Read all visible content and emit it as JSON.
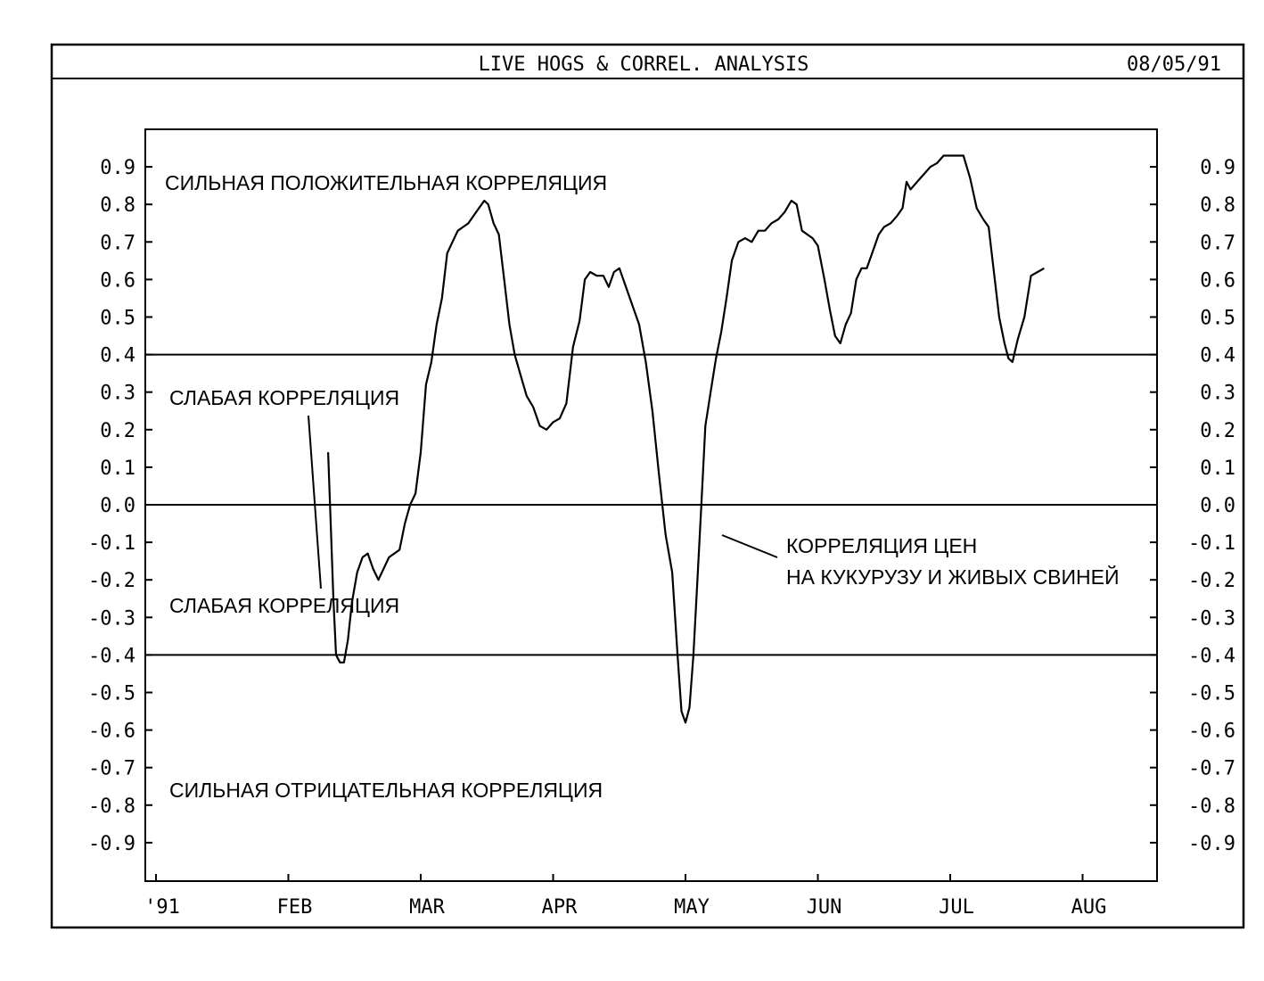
{
  "header": {
    "title": "LIVE HOGS & CORREL. ANALYSIS",
    "date": "08/05/91"
  },
  "chart_data": {
    "type": "line",
    "title": "LIVE HOGS & CORREL. ANALYSIS",
    "xlabel": "",
    "ylabel": "",
    "ylim": [
      -1.0,
      1.0
    ],
    "xlim": [
      0,
      8.5
    ],
    "grid": false,
    "y_ticks": [
      "0.9",
      "0.8",
      "0.7",
      "0.6",
      "0.5",
      "0.4",
      "0.3",
      "0.2",
      "0.1",
      "0.0",
      "-0.1",
      "-0.2",
      "-0.3",
      "-0.4",
      "-0.5",
      "-0.6",
      "-0.7",
      "-0.8",
      "-0.9"
    ],
    "y_tick_values": [
      0.9,
      0.8,
      0.7,
      0.6,
      0.5,
      0.4,
      0.3,
      0.2,
      0.1,
      0.0,
      -0.1,
      -0.2,
      -0.3,
      -0.4,
      -0.5,
      -0.6,
      -0.7,
      -0.8,
      -0.9
    ],
    "x_ticks": [
      "'91",
      "FEB",
      "MAR",
      "APR",
      "MAY",
      "JUN",
      "JUL",
      "AUG"
    ],
    "x_tick_values": [
      0,
      1,
      2,
      3,
      4,
      5,
      6,
      7
    ],
    "reference_lines": [
      0.4,
      0.0,
      -0.4
    ],
    "annotations": {
      "strong_positive": "СИЛЬНАЯ ПОЛОЖИТЕЛЬНАЯ КОРРЕЛЯЦИЯ",
      "weak_upper": "СЛАБАЯ КОРРЕЛЯЦИЯ",
      "weak_lower": "СЛАБАЯ КОРРЕЛЯЦИЯ",
      "strong_negative": "СИЛЬНАЯ ОТРИЦАТЕЛЬНАЯ КОРРЕЛЯЦИЯ",
      "series_label_line1": "КОРРЕЛЯЦИЯ ЦЕН",
      "series_label_line2": "НА КУКУРУЗУ И ЖИВЫХ СВИНЕЙ"
    },
    "series": [
      {
        "points": [
          [
            1.3,
            0.14
          ],
          [
            1.32,
            -0.05
          ],
          [
            1.34,
            -0.25
          ],
          [
            1.36,
            -0.4
          ],
          [
            1.39,
            -0.42
          ],
          [
            1.42,
            -0.42
          ],
          [
            1.45,
            -0.36
          ],
          [
            1.48,
            -0.26
          ],
          [
            1.52,
            -0.18
          ],
          [
            1.56,
            -0.14
          ],
          [
            1.6,
            -0.13
          ],
          [
            1.64,
            -0.17
          ],
          [
            1.68,
            -0.2
          ],
          [
            1.72,
            -0.17
          ],
          [
            1.76,
            -0.14
          ],
          [
            1.8,
            -0.13
          ],
          [
            1.84,
            -0.12
          ],
          [
            1.88,
            -0.05
          ],
          [
            1.92,
            0.0
          ],
          [
            1.96,
            0.03
          ],
          [
            2.0,
            0.14
          ],
          [
            2.04,
            0.32
          ],
          [
            2.08,
            0.38
          ],
          [
            2.12,
            0.48
          ],
          [
            2.16,
            0.55
          ],
          [
            2.2,
            0.67
          ],
          [
            2.24,
            0.7
          ],
          [
            2.28,
            0.73
          ],
          [
            2.32,
            0.74
          ],
          [
            2.36,
            0.75
          ],
          [
            2.4,
            0.77
          ],
          [
            2.44,
            0.79
          ],
          [
            2.48,
            0.81
          ],
          [
            2.51,
            0.8
          ],
          [
            2.55,
            0.75
          ],
          [
            2.59,
            0.72
          ],
          [
            2.63,
            0.6
          ],
          [
            2.67,
            0.48
          ],
          [
            2.71,
            0.4
          ],
          [
            2.75,
            0.35
          ],
          [
            2.8,
            0.29
          ],
          [
            2.85,
            0.26
          ],
          [
            2.9,
            0.21
          ],
          [
            2.95,
            0.2
          ],
          [
            3.0,
            0.22
          ],
          [
            3.05,
            0.23
          ],
          [
            3.1,
            0.27
          ],
          [
            3.15,
            0.42
          ],
          [
            3.2,
            0.49
          ],
          [
            3.24,
            0.6
          ],
          [
            3.28,
            0.62
          ],
          [
            3.33,
            0.61
          ],
          [
            3.38,
            0.61
          ],
          [
            3.42,
            0.58
          ],
          [
            3.46,
            0.62
          ],
          [
            3.5,
            0.63
          ],
          [
            3.55,
            0.58
          ],
          [
            3.6,
            0.53
          ],
          [
            3.65,
            0.48
          ],
          [
            3.7,
            0.38
          ],
          [
            3.75,
            0.25
          ],
          [
            3.8,
            0.08
          ],
          [
            3.85,
            -0.08
          ],
          [
            3.9,
            -0.18
          ],
          [
            3.94,
            -0.4
          ],
          [
            3.97,
            -0.55
          ],
          [
            4.0,
            -0.58
          ],
          [
            4.03,
            -0.54
          ],
          [
            4.06,
            -0.4
          ],
          [
            4.09,
            -0.2
          ],
          [
            4.12,
            0.0
          ],
          [
            4.15,
            0.21
          ],
          [
            4.19,
            0.3
          ],
          [
            4.23,
            0.39
          ],
          [
            4.27,
            0.46
          ],
          [
            4.31,
            0.55
          ],
          [
            4.35,
            0.65
          ],
          [
            4.4,
            0.7
          ],
          [
            4.45,
            0.71
          ],
          [
            4.5,
            0.7
          ],
          [
            4.55,
            0.73
          ],
          [
            4.6,
            0.73
          ],
          [
            4.65,
            0.75
          ],
          [
            4.7,
            0.76
          ],
          [
            4.75,
            0.78
          ],
          [
            4.8,
            0.81
          ],
          [
            4.84,
            0.8
          ],
          [
            4.88,
            0.73
          ],
          [
            4.92,
            0.72
          ],
          [
            4.96,
            0.71
          ],
          [
            5.0,
            0.69
          ],
          [
            5.05,
            0.6
          ],
          [
            5.09,
            0.52
          ],
          [
            5.13,
            0.45
          ],
          [
            5.17,
            0.43
          ],
          [
            5.21,
            0.48
          ],
          [
            5.25,
            0.51
          ],
          [
            5.29,
            0.6
          ],
          [
            5.33,
            0.63
          ],
          [
            5.37,
            0.63
          ],
          [
            5.41,
            0.67
          ],
          [
            5.46,
            0.72
          ],
          [
            5.5,
            0.74
          ],
          [
            5.55,
            0.75
          ],
          [
            5.6,
            0.77
          ],
          [
            5.64,
            0.79
          ],
          [
            5.67,
            0.86
          ],
          [
            5.7,
            0.84
          ],
          [
            5.75,
            0.86
          ],
          [
            5.8,
            0.88
          ],
          [
            5.85,
            0.9
          ],
          [
            5.9,
            0.91
          ],
          [
            5.95,
            0.93
          ],
          [
            6.0,
            0.93
          ],
          [
            6.05,
            0.93
          ],
          [
            6.1,
            0.93
          ],
          [
            6.15,
            0.87
          ],
          [
            6.2,
            0.79
          ],
          [
            6.25,
            0.76
          ],
          [
            6.29,
            0.74
          ],
          [
            6.33,
            0.62
          ],
          [
            6.37,
            0.5
          ],
          [
            6.41,
            0.43
          ],
          [
            6.44,
            0.39
          ],
          [
            6.47,
            0.38
          ],
          [
            6.51,
            0.44
          ],
          [
            6.56,
            0.5
          ],
          [
            6.61,
            0.61
          ],
          [
            6.66,
            0.62
          ],
          [
            6.71,
            0.63
          ]
        ]
      }
    ]
  }
}
